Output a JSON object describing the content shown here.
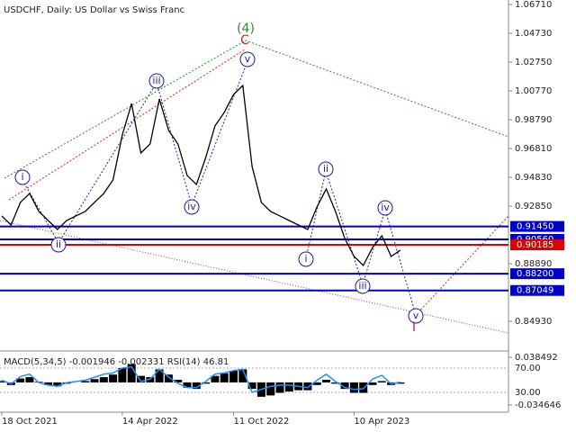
{
  "chart_data": {
    "type": "line",
    "title": "USDCHF, Daily:  US Dollar vs Swiss Franc",
    "categories": [
      "18 Oct 2021",
      null,
      null,
      null,
      null,
      null,
      null,
      null,
      null,
      null,
      null,
      null,
      null,
      "14 Apr 2022",
      null,
      null,
      null,
      null,
      null,
      null,
      null,
      null,
      null,
      null,
      null,
      "11 Oct 2022",
      null,
      null,
      null,
      null,
      null,
      null,
      null,
      null,
      null,
      null,
      null,
      null,
      "10 Apr 2023",
      null,
      null,
      null,
      null,
      null
    ],
    "series": [
      {
        "name": "USDCHF",
        "color": "#000000",
        "values": [
          0.9217,
          0.9155,
          0.931,
          0.9372,
          0.9248,
          0.9186,
          0.9124,
          0.9186,
          0.9217,
          0.9248,
          0.931,
          0.9372,
          0.9465,
          0.9774,
          0.999,
          0.965,
          0.9712,
          1.0021,
          0.9805,
          0.9712,
          0.9495,
          0.9434,
          0.9619,
          0.9836,
          0.9929,
          1.0052,
          1.0114,
          0.9557,
          0.931,
          0.9248,
          0.9217,
          0.9186,
          0.9155,
          0.9124,
          0.9279,
          0.9403,
          0.9248,
          0.9062,
          0.8939,
          0.8877,
          0.9001,
          0.9081,
          0.8939,
          0.8982
        ]
      }
    ],
    "ylim": [
      0.8301,
      1.0702
    ],
    "yticks": [
      {
        "value": 1.0671,
        "label": "1.06710"
      },
      {
        "value": 1.0473,
        "label": "1.04730"
      },
      {
        "value": 1.0275,
        "label": "1.02750"
      },
      {
        "value": 1.0077,
        "label": "1.00770"
      },
      {
        "value": 0.9879,
        "label": "0.98790"
      },
      {
        "value": 0.9681,
        "label": "0.96810"
      },
      {
        "value": 0.9483,
        "label": "0.94830"
      },
      {
        "value": 0.9285,
        "label": "0.92850"
      },
      {
        "value": 0.8889,
        "label": "0.88890"
      },
      {
        "value": 0.8493,
        "label": "0.84930"
      }
    ],
    "levels": [
      {
        "value": 0.9145,
        "label": "0.91450",
        "color": "#0000cc"
      },
      {
        "value": 0.9056,
        "label": "0.90560",
        "color": "#0000cc"
      },
      {
        "value": 0.90185,
        "label": "0.90185",
        "color": "#dd0000"
      },
      {
        "value": 0.882,
        "label": "0.88200",
        "color": "#0000cc"
      },
      {
        "value": 0.87049,
        "label": "0.87049",
        "color": "#0000cc"
      }
    ],
    "annotations": [
      {
        "text": "(4)",
        "color": "#2e8b2e"
      },
      {
        "text": "C",
        "color": "#cc2222"
      },
      {
        "text": "v",
        "color": "#1a1aa6"
      },
      {
        "text": "iii",
        "color": "#1a1aa6"
      },
      {
        "text": "i",
        "color": "#1a1aa6"
      },
      {
        "text": "ii",
        "color": "#1a1aa6"
      },
      {
        "text": "iv",
        "color": "#1a1aa6"
      },
      {
        "text": "ii",
        "color": "#1a1aa6"
      },
      {
        "text": "i",
        "color": "#1a1aa6"
      },
      {
        "text": "iii",
        "color": "#1a1aa6"
      },
      {
        "text": "iv",
        "color": "#1a1aa6"
      },
      {
        "text": "v",
        "color": "#1a1aa6"
      },
      {
        "text": "I",
        "color": "#cc2222"
      }
    ],
    "indicator": {
      "title": "MACD(5,34,5) -0.001946 -0.002331 RSI(14) 46.81",
      "macd": {
        "color": "#000000",
        "values": [
          0.002,
          -0.004,
          0.006,
          0.008,
          0.001,
          -0.004,
          -0.006,
          -0.002,
          0.0,
          0.002,
          0.005,
          0.008,
          0.012,
          0.022,
          0.028,
          0.01,
          0.008,
          0.02,
          0.012,
          0.004,
          -0.008,
          -0.01,
          -0.002,
          0.01,
          0.014,
          0.018,
          0.02,
          -0.01,
          -0.022,
          -0.02,
          -0.016,
          -0.014,
          -0.012,
          -0.012,
          -0.004,
          0.004,
          -0.002,
          -0.01,
          -0.016,
          -0.016,
          -0.004,
          0.002,
          -0.004,
          -0.002
        ]
      },
      "ylim": [
        -0.04569,
        0.04539
      ],
      "yticks": [
        {
          "value": 0.038492,
          "label": "0.038492"
        },
        {
          "value": -0.034646,
          "label": "-0.034646"
        }
      ],
      "rsi": {
        "color": "#1e90ff",
        "values": [
          50,
          44,
          56,
          60,
          46,
          42,
          40,
          46,
          48,
          50,
          55,
          60,
          62,
          70,
          72,
          48,
          52,
          68,
          55,
          45,
          38,
          38,
          48,
          60,
          62,
          66,
          68,
          30,
          35,
          40,
          42,
          42,
          40,
          38,
          50,
          60,
          48,
          38,
          35,
          36,
          52,
          58,
          44,
          47
        ]
      },
      "rsi_ylim": [
        -2.6,
        95.2
      ],
      "rsi_yticks": [
        {
          "value": 70,
          "label": "70.00"
        },
        {
          "value": 30,
          "label": "30.00"
        }
      ]
    }
  }
}
